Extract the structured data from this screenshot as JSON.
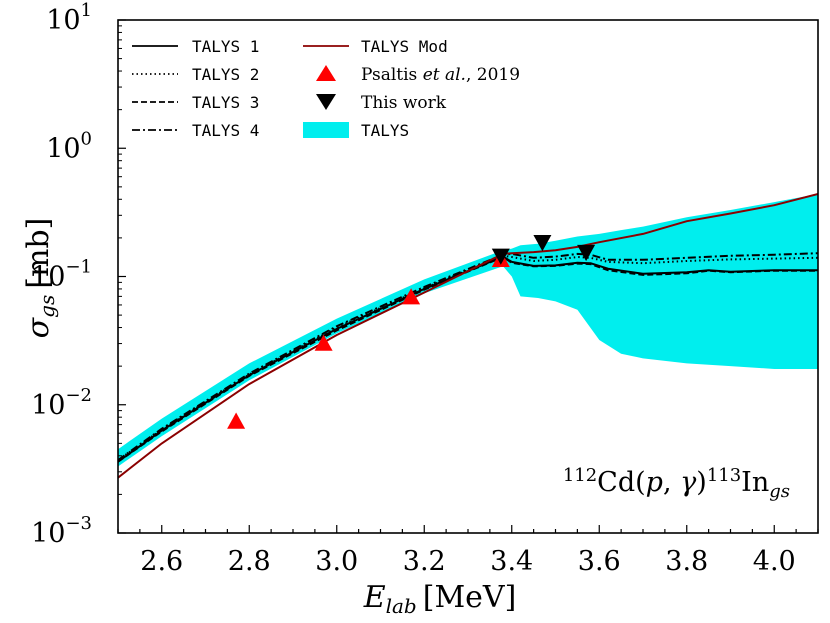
{
  "chart_data": {
    "type": "line",
    "xlabel": "E",
    "xlabel_sub": "lab",
    "xlabel_unit": "[MeV]",
    "ylabel": "σ",
    "ylabel_sub": "gs",
    "ylabel_unit": "[mb]",
    "yscale": "log",
    "xlim": [
      2.5,
      4.1
    ],
    "ylim": [
      0.001,
      10
    ],
    "x_ticks": [
      {
        "value": 2.6,
        "label": "2.6"
      },
      {
        "value": 2.8,
        "label": "2.8"
      },
      {
        "value": 3.0,
        "label": "3.0"
      },
      {
        "value": 3.2,
        "label": "3.2"
      },
      {
        "value": 3.4,
        "label": "3.4"
      },
      {
        "value": 3.6,
        "label": "3.6"
      },
      {
        "value": 3.8,
        "label": "3.8"
      },
      {
        "value": 4.0,
        "label": "4.0"
      }
    ],
    "y_ticks": [
      {
        "value": 10,
        "base": "10",
        "exp": "1"
      },
      {
        "value": 1,
        "base": "10",
        "exp": "0"
      },
      {
        "value": 0.1,
        "base": "10",
        "exp": "−1"
      },
      {
        "value": 0.01,
        "base": "10",
        "exp": "−2"
      },
      {
        "value": 0.001,
        "base": "10",
        "exp": "−3"
      }
    ],
    "annotation": {
      "pre_mass": "112",
      "target": "Cd(",
      "p": "p",
      "comma": ", ",
      "gamma": "γ",
      "close": ")",
      "post_mass": "113",
      "product": "In",
      "sub": "gs"
    },
    "band": {
      "name": "TALYS",
      "color": "#00eeee",
      "x": [
        2.5,
        2.6,
        2.8,
        3.0,
        3.2,
        3.38,
        3.4,
        3.42,
        3.46,
        3.5,
        3.55,
        3.6,
        3.65,
        3.7,
        3.8,
        3.9,
        4.0,
        4.1
      ],
      "lower": [
        0.0033,
        0.0057,
        0.0155,
        0.036,
        0.074,
        0.12,
        0.1,
        0.07,
        0.068,
        0.064,
        0.055,
        0.032,
        0.025,
        0.023,
        0.021,
        0.02,
        0.019,
        0.019
      ],
      "upper": [
        0.0045,
        0.0078,
        0.021,
        0.047,
        0.095,
        0.16,
        0.165,
        0.175,
        0.18,
        0.19,
        0.205,
        0.215,
        0.23,
        0.245,
        0.29,
        0.33,
        0.38,
        0.44
      ]
    },
    "series": [
      {
        "name": "TALYS 1",
        "dash": "solid",
        "color": "#000000",
        "x": [
          2.5,
          2.6,
          2.8,
          3.0,
          3.2,
          3.38,
          3.4,
          3.45,
          3.5,
          3.55,
          3.58,
          3.62,
          3.7,
          3.8,
          3.85,
          3.9,
          4.0,
          4.1
        ],
        "y": [
          0.0036,
          0.0063,
          0.017,
          0.039,
          0.08,
          0.143,
          0.13,
          0.121,
          0.122,
          0.128,
          0.127,
          0.115,
          0.105,
          0.108,
          0.112,
          0.109,
          0.112,
          0.112
        ]
      },
      {
        "name": "TALYS 2",
        "dash": "dotted",
        "color": "#000000",
        "x": [
          2.5,
          2.6,
          2.8,
          3.0,
          3.2,
          3.38,
          3.4,
          3.45,
          3.5,
          3.55,
          3.58,
          3.62,
          3.7,
          3.8,
          3.9,
          4.0,
          4.1
        ],
        "y": [
          0.0037,
          0.0064,
          0.0172,
          0.04,
          0.081,
          0.145,
          0.142,
          0.132,
          0.135,
          0.142,
          0.14,
          0.13,
          0.127,
          0.132,
          0.136,
          0.138,
          0.14
        ]
      },
      {
        "name": "TALYS 3",
        "dash": "dashed",
        "color": "#000000",
        "x": [
          2.5,
          2.6,
          2.8,
          3.0,
          3.2,
          3.38,
          3.4,
          3.45,
          3.5,
          3.55,
          3.58,
          3.62,
          3.7,
          3.8,
          3.85,
          3.9,
          4.0,
          4.1
        ],
        "y": [
          0.0036,
          0.0062,
          0.0168,
          0.038,
          0.079,
          0.142,
          0.128,
          0.12,
          0.121,
          0.126,
          0.125,
          0.112,
          0.103,
          0.106,
          0.111,
          0.108,
          0.111,
          0.111
        ]
      },
      {
        "name": "TALYS 4",
        "dash": "dashdot",
        "color": "#000000",
        "x": [
          2.5,
          2.6,
          2.8,
          3.0,
          3.2,
          3.38,
          3.4,
          3.45,
          3.5,
          3.55,
          3.58,
          3.62,
          3.7,
          3.8,
          3.9,
          4.0,
          4.1
        ],
        "y": [
          0.0037,
          0.0065,
          0.0175,
          0.041,
          0.083,
          0.148,
          0.15,
          0.14,
          0.143,
          0.15,
          0.148,
          0.135,
          0.135,
          0.14,
          0.145,
          0.148,
          0.152
        ]
      },
      {
        "name": "TALYS Mod",
        "dash": "solid",
        "color": "#8b0000",
        "x": [
          2.5,
          2.6,
          2.8,
          3.0,
          3.2,
          3.38,
          3.4,
          3.45,
          3.5,
          3.55,
          3.6,
          3.7,
          3.8,
          3.9,
          4.0,
          4.1
        ],
        "y": [
          0.0027,
          0.005,
          0.0145,
          0.035,
          0.075,
          0.15,
          0.152,
          0.155,
          0.16,
          0.17,
          0.185,
          0.215,
          0.27,
          0.31,
          0.36,
          0.44
        ]
      }
    ],
    "points": [
      {
        "name": "Psaltis et al., 2019",
        "marker": "triangle-up",
        "color": "#ff0000",
        "x": [
          2.77,
          2.97,
          3.17,
          3.375
        ],
        "y": [
          0.0074,
          0.03,
          0.069,
          0.135
        ]
      },
      {
        "name": "This work",
        "marker": "triangle-down",
        "color": "#000000",
        "x": [
          3.375,
          3.47,
          3.57
        ],
        "y": [
          0.145,
          0.185,
          0.155
        ]
      }
    ],
    "legend": {
      "placement": "top-left",
      "entries": [
        {
          "key": "TALYS 1",
          "label": "TALYS 1"
        },
        {
          "key": "TALYS 2",
          "label": "TALYS 2"
        },
        {
          "key": "TALYS 3",
          "label": "TALYS 3"
        },
        {
          "key": "TALYS 4",
          "label": "TALYS 4"
        },
        {
          "key": "TALYS Mod",
          "label": "TALYS Mod"
        },
        {
          "key": "psaltis",
          "label_pre": "Psaltis ",
          "label_italic": "et al.",
          "label_post": ", 2019"
        },
        {
          "key": "this",
          "label": "This work"
        },
        {
          "key": "band",
          "label": "TALYS"
        }
      ]
    }
  }
}
